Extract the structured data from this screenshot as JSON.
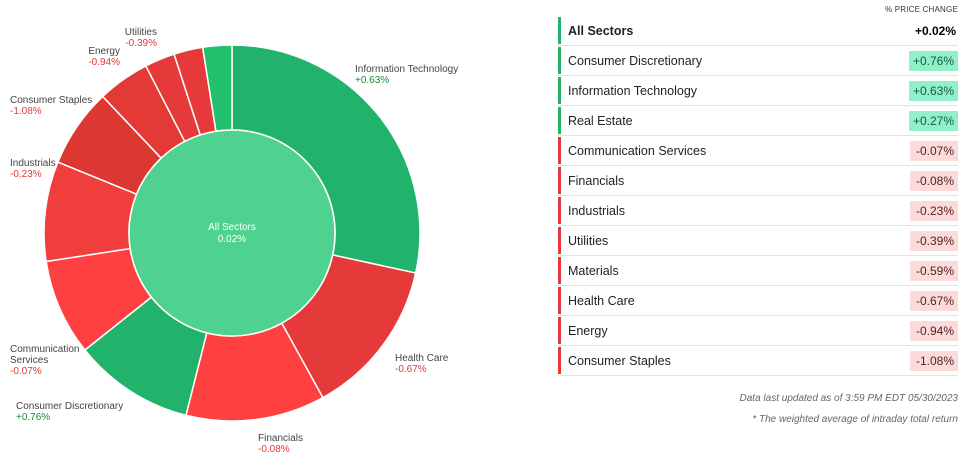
{
  "chart_data": {
    "type": "pie",
    "center": {
      "label": "All Sectors",
      "value": "0.02%"
    },
    "slices": [
      {
        "name": "Information Technology",
        "value_label": "+0.63%",
        "weight": 28.5,
        "color": "#21b36b",
        "label_color": "#1a8a3a"
      },
      {
        "name": "Health Care",
        "value_label": "-0.67%",
        "weight": 13.6,
        "color": "#e53a39",
        "label_color": "#e03a3a"
      },
      {
        "name": "Financials",
        "value_label": "-0.08%",
        "weight": 12.0,
        "color": "#ff4040",
        "label_color": "#e03a3a"
      },
      {
        "name": "Consumer Discretionary",
        "value_label": "+0.76%",
        "weight": 10.4,
        "color": "#21b36b",
        "label_color": "#1a8a3a"
      },
      {
        "name": "Communication Services",
        "value_label": "-0.07%",
        "weight": 8.3,
        "color": "#ff4040",
        "label_color": "#e03a3a"
      },
      {
        "name": "Industrials",
        "value_label": "-0.23%",
        "weight": 8.6,
        "color": "#ef3e3b",
        "label_color": "#e03a3a"
      },
      {
        "name": "Consumer Staples",
        "value_label": "-1.08%",
        "weight": 6.8,
        "color": "#dc3832",
        "label_color": "#e03a3a"
      },
      {
        "name": "Energy",
        "value_label": "-0.94%",
        "weight": 4.5,
        "color": "#e33a36",
        "label_color": "#e03a3a"
      },
      {
        "name": "Materials",
        "value_label": "",
        "weight": 2.6,
        "color": "#e53a39",
        "label_color": "#e03a3a"
      },
      {
        "name": "Utilities",
        "value_label": "-0.39%",
        "weight": 2.5,
        "color": "#e53a39",
        "label_color": "#e03a3a"
      },
      {
        "name": "Real Estate",
        "value_label": "",
        "weight": 2.5,
        "color": "#23c06e",
        "label_color": "#1a8a3a"
      }
    ],
    "labels": [
      {
        "slice": 0,
        "lines": [
          "Information Technology"
        ],
        "anchor": "start"
      },
      {
        "slice": 1,
        "lines": [
          "Health Care"
        ],
        "anchor": "start"
      },
      {
        "slice": 2,
        "lines": [
          "Financials"
        ],
        "anchor": "start"
      },
      {
        "slice": 3,
        "lines": [
          "Consumer Discretionary"
        ],
        "anchor": "start"
      },
      {
        "slice": 4,
        "lines": [
          "Communication",
          "Services"
        ],
        "anchor": "start"
      },
      {
        "slice": 5,
        "lines": [
          "Industrials"
        ],
        "anchor": "start"
      },
      {
        "slice": 6,
        "lines": [
          "Consumer Staples"
        ],
        "anchor": "start"
      },
      {
        "slice": 7,
        "lines": [
          "Energy"
        ],
        "anchor": "end"
      },
      {
        "slice": 9,
        "lines": [
          "Utilities"
        ],
        "anchor": "end"
      }
    ]
  },
  "table": {
    "column_header": "% PRICE CHANGE",
    "rows": [
      {
        "name": "All Sectors",
        "value": "+0.02%",
        "kind": "summary",
        "bar": "#21b36b"
      },
      {
        "name": "Consumer Discretionary",
        "value": "+0.76%",
        "kind": "pos",
        "bar": "#21b36b"
      },
      {
        "name": "Information Technology",
        "value": "+0.63%",
        "kind": "pos",
        "bar": "#21b36b"
      },
      {
        "name": "Real Estate",
        "value": "+0.27%",
        "kind": "pos",
        "bar": "#21b36b"
      },
      {
        "name": "Communication Services",
        "value": "-0.07%",
        "kind": "neg",
        "bar": "#e53a39"
      },
      {
        "name": "Financials",
        "value": "-0.08%",
        "kind": "neg",
        "bar": "#e53a39"
      },
      {
        "name": "Industrials",
        "value": "-0.23%",
        "kind": "neg",
        "bar": "#e53a39"
      },
      {
        "name": "Utilities",
        "value": "-0.39%",
        "kind": "neg",
        "bar": "#e53a39"
      },
      {
        "name": "Materials",
        "value": "-0.59%",
        "kind": "neg",
        "bar": "#e53a39"
      },
      {
        "name": "Health Care",
        "value": "-0.67%",
        "kind": "neg",
        "bar": "#e53a39"
      },
      {
        "name": "Energy",
        "value": "-0.94%",
        "kind": "neg",
        "bar": "#e53a39"
      },
      {
        "name": "Consumer Staples",
        "value": "-1.08%",
        "kind": "neg",
        "bar": "#e53a39"
      }
    ],
    "last_updated": "Data last updated as of 3:59 PM EDT 05/30/2023",
    "footnote": "* The weighted average of intraday total return"
  }
}
